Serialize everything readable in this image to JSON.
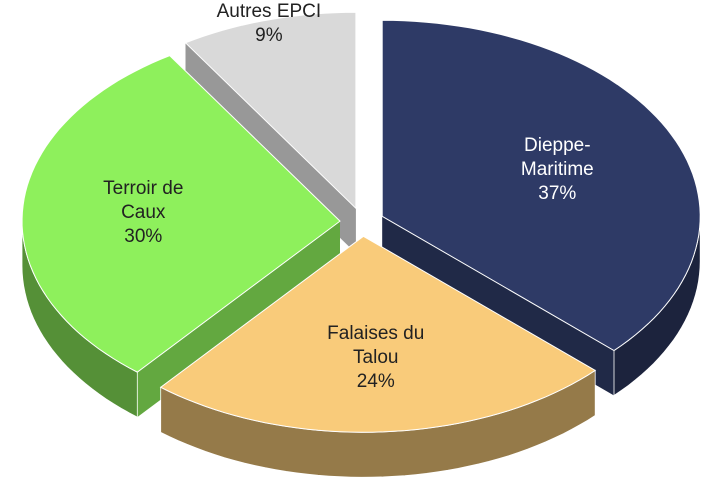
{
  "chart_data": {
    "type": "pie",
    "categories": [
      "Dieppe-Maritime",
      "Falaises du Talou",
      "Terroir de Caux",
      "Autres EPCI"
    ],
    "values": [
      37,
      24,
      30,
      9
    ],
    "value_labels": [
      "37%",
      "24%",
      "30%",
      "9%"
    ],
    "colors": [
      "#2e3a66",
      "#f9cb7a",
      "#8ef05c",
      "#d9d9d9"
    ]
  }
}
